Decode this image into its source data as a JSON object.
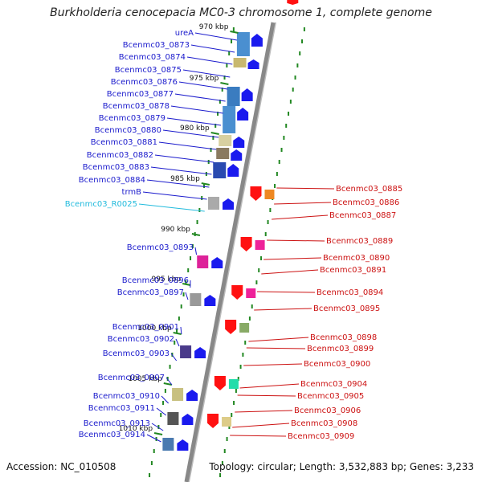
{
  "title": "Burkholderia cenocepacia MC0-3 chromosome 1, complete genome",
  "footer": {
    "accession": "Accession: NC_010508",
    "summary": "Topology: circular; Length: 3,532,883 bp; Genes: 3,233"
  },
  "colors": {
    "forward_label": "#1a1acc",
    "reverse_label": "#cc1111",
    "rna_label": "#22bbdd",
    "backbone": "#888888",
    "tick": "#228822"
  },
  "scale": [
    {
      "label": "970 kbp",
      "pos": 970
    },
    {
      "label": "975 kbp",
      "pos": 975
    },
    {
      "label": "980 kbp",
      "pos": 980
    },
    {
      "label": "985 kbp",
      "pos": 985
    },
    {
      "label": "990 kbp",
      "pos": 990
    },
    {
      "label": "995 kbp",
      "pos": 995
    },
    {
      "label": "1000 kbp",
      "pos": 1000
    },
    {
      "label": "1005 kbp",
      "pos": 1005
    },
    {
      "label": "1010 kbp",
      "pos": 1010
    }
  ],
  "forward_genes": [
    {
      "label": "ureA"
    },
    {
      "label": "Bcenmc03_0873"
    },
    {
      "label": "Bcenmc03_0874"
    },
    {
      "label": "Bcenmc03_0875"
    },
    {
      "label": "Bcenmc03_0876"
    },
    {
      "label": "Bcenmc03_0877"
    },
    {
      "label": "Bcenmc03_0878"
    },
    {
      "label": "Bcenmc03_0879"
    },
    {
      "label": "Bcenmc03_0880"
    },
    {
      "label": "Bcenmc03_0881"
    },
    {
      "label": "Bcenmc03_0882"
    },
    {
      "label": "Bcenmc03_0883"
    },
    {
      "label": "Bcenmc03_0884"
    },
    {
      "label": "trmB"
    },
    {
      "label": "Bcenmc03_R0025",
      "rna": true
    },
    {
      "label": "Bcenmc03_0893"
    },
    {
      "label": "Bcenmc03_0896"
    },
    {
      "label": "Bcenmc03_0897"
    },
    {
      "label": "Bcenmc03_0901"
    },
    {
      "label": "Bcenmc03_0902"
    },
    {
      "label": "Bcenmc03_0903"
    },
    {
      "label": "Bcenmc03_0907"
    },
    {
      "label": "Bcenmc03_0910"
    },
    {
      "label": "Bcenmc03_0911"
    },
    {
      "label": "Bcenmc03_0913"
    },
    {
      "label": "Bcenmc03_0914"
    }
  ],
  "reverse_genes": [
    {
      "label": "Bcenmc03_0885"
    },
    {
      "label": "Bcenmc03_0886"
    },
    {
      "label": "Bcenmc03_0887"
    },
    {
      "label": "Bcenmc03_0889"
    },
    {
      "label": "Bcenmc03_0890"
    },
    {
      "label": "Bcenmc03_0891"
    },
    {
      "label": "Bcenmc03_0894"
    },
    {
      "label": "Bcenmc03_0895"
    },
    {
      "label": "Bcenmc03_0898"
    },
    {
      "label": "Bcenmc03_0899"
    },
    {
      "label": "Bcenmc03_0900"
    },
    {
      "label": "Bcenmc03_0904"
    },
    {
      "label": "Bcenmc03_0905"
    },
    {
      "label": "Bcenmc03_0906"
    },
    {
      "label": "Bcenmc03_0908"
    },
    {
      "label": "Bcenmc03_0909"
    }
  ]
}
